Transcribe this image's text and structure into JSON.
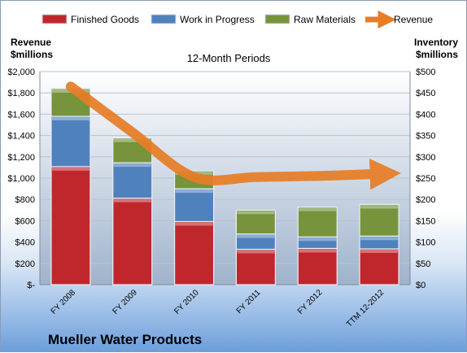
{
  "chart_data": {
    "type": "bar",
    "stacked": true,
    "title": "Mueller Water Products",
    "subtitle": "12-Month Periods",
    "ylabel_left": "Revenue\n$millions",
    "ylabel_right": "Inventory\n$millions",
    "categories": [
      "FY 2008",
      "FY 2009",
      "FY 2010",
      "FY 2011",
      "FY 2012",
      "TTM 12-2012"
    ],
    "left_axis": {
      "min": 0,
      "max": 2000,
      "step": 200,
      "tick_labels": [
        "$-",
        "$200",
        "$400",
        "$600",
        "$800",
        "$1,000",
        "$1,200",
        "$1,400",
        "$1,600",
        "$1,800",
        "$2,000"
      ]
    },
    "right_axis": {
      "min": 0,
      "max": 500,
      "step": 50,
      "tick_labels": [
        "$0",
        "$50",
        "$100",
        "$150",
        "$200",
        "$250",
        "$300",
        "$350",
        "$400",
        "$450",
        "$500"
      ]
    },
    "series": [
      {
        "name": "Finished Goods",
        "axis": "right",
        "kind": "bar",
        "color": "#c0272d",
        "values": [
          277,
          203,
          148,
          83,
          85,
          84
        ]
      },
      {
        "name": "Work in Progress",
        "axis": "right",
        "kind": "bar",
        "color": "#4f81bd",
        "values": [
          118,
          83,
          77,
          36,
          27,
          30
        ]
      },
      {
        "name": "Raw Materials",
        "axis": "right",
        "kind": "bar",
        "color": "#77933c",
        "values": [
          65,
          58,
          42,
          56,
          70,
          74
        ]
      },
      {
        "name": "Revenue",
        "axis": "left",
        "kind": "line",
        "color": "#e87d26",
        "values": [
          1860,
          1430,
          1010,
          1010,
          1020,
          1040
        ]
      }
    ],
    "legend_position": "top",
    "grid": true
  },
  "colors": {
    "plot_bg_top": "#ffffff",
    "plot_bg_bottom": "#9fb3cc"
  }
}
